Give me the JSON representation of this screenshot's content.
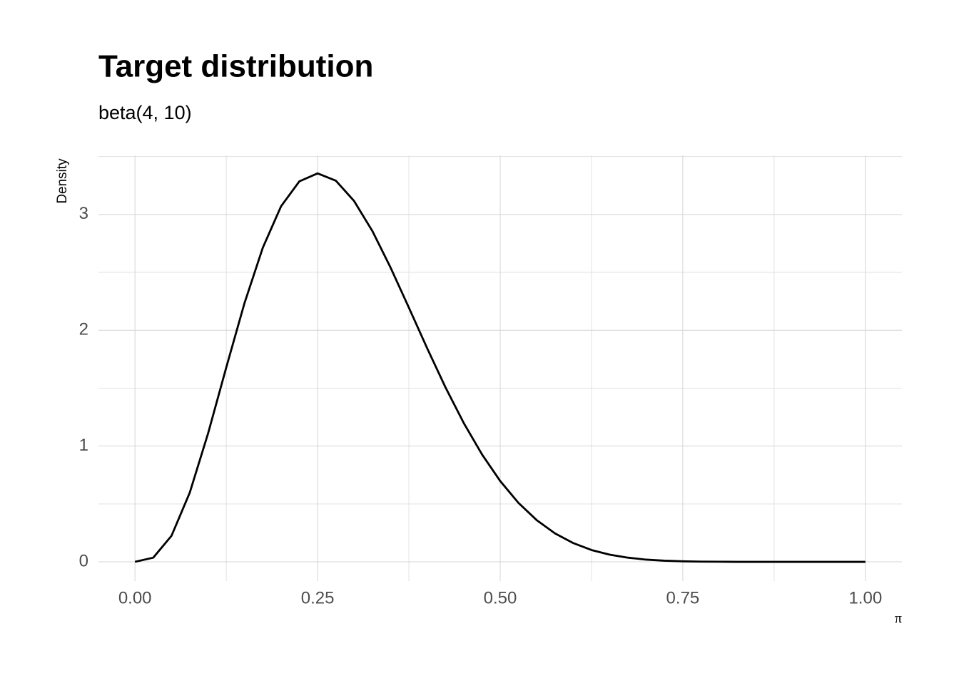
{
  "chart_data": {
    "type": "line",
    "title": "Target distribution",
    "subtitle": "beta(4, 10)",
    "y_label": "Density",
    "x_label": "π",
    "x": [
      0,
      0.025,
      0.05,
      0.075,
      0.1,
      0.125,
      0.15,
      0.175,
      0.2,
      0.225,
      0.25,
      0.275,
      0.3,
      0.325,
      0.35,
      0.375,
      0.4,
      0.425,
      0.45,
      0.475,
      0.5,
      0.525,
      0.55,
      0.575,
      0.6,
      0.625,
      0.65,
      0.675,
      0.7,
      0.725,
      0.75,
      0.775,
      0.8,
      0.825,
      0.85,
      0.875,
      0.9,
      0.925,
      0.95,
      0.975,
      1
    ],
    "series": [
      {
        "name": "beta(4, 10)",
        "color": "#000000",
        "values": [
          0,
          0.036,
          0.225,
          0.598,
          1.108,
          1.68,
          2.236,
          2.713,
          3.071,
          3.286,
          3.355,
          3.292,
          3.116,
          2.857,
          2.54,
          2.195,
          1.845,
          1.508,
          1.2,
          0.929,
          0.698,
          0.509,
          0.36,
          0.246,
          0.162,
          0.102,
          0.062,
          0.036,
          0.019,
          0.0098,
          0.0046,
          0.002,
          0.001,
          0,
          0,
          0,
          0,
          0,
          0,
          0,
          0
        ]
      }
    ],
    "xlim": [
      -0.05,
      1.05
    ],
    "ylim": [
      -0.166,
      3.51
    ],
    "xticks": [
      {
        "value": 0,
        "label": "0.00"
      },
      {
        "value": 0.25,
        "label": "0.25"
      },
      {
        "value": 0.5,
        "label": "0.50"
      },
      {
        "value": 0.75,
        "label": "0.75"
      },
      {
        "value": 1,
        "label": "1.00"
      }
    ],
    "yticks": [
      0,
      1,
      2,
      3
    ],
    "minor_xticks": [
      0.125,
      0.375,
      0.625,
      0.875
    ],
    "minor_yticks": [
      0.5,
      1.5,
      2.5,
      3.5
    ],
    "grid": true
  }
}
